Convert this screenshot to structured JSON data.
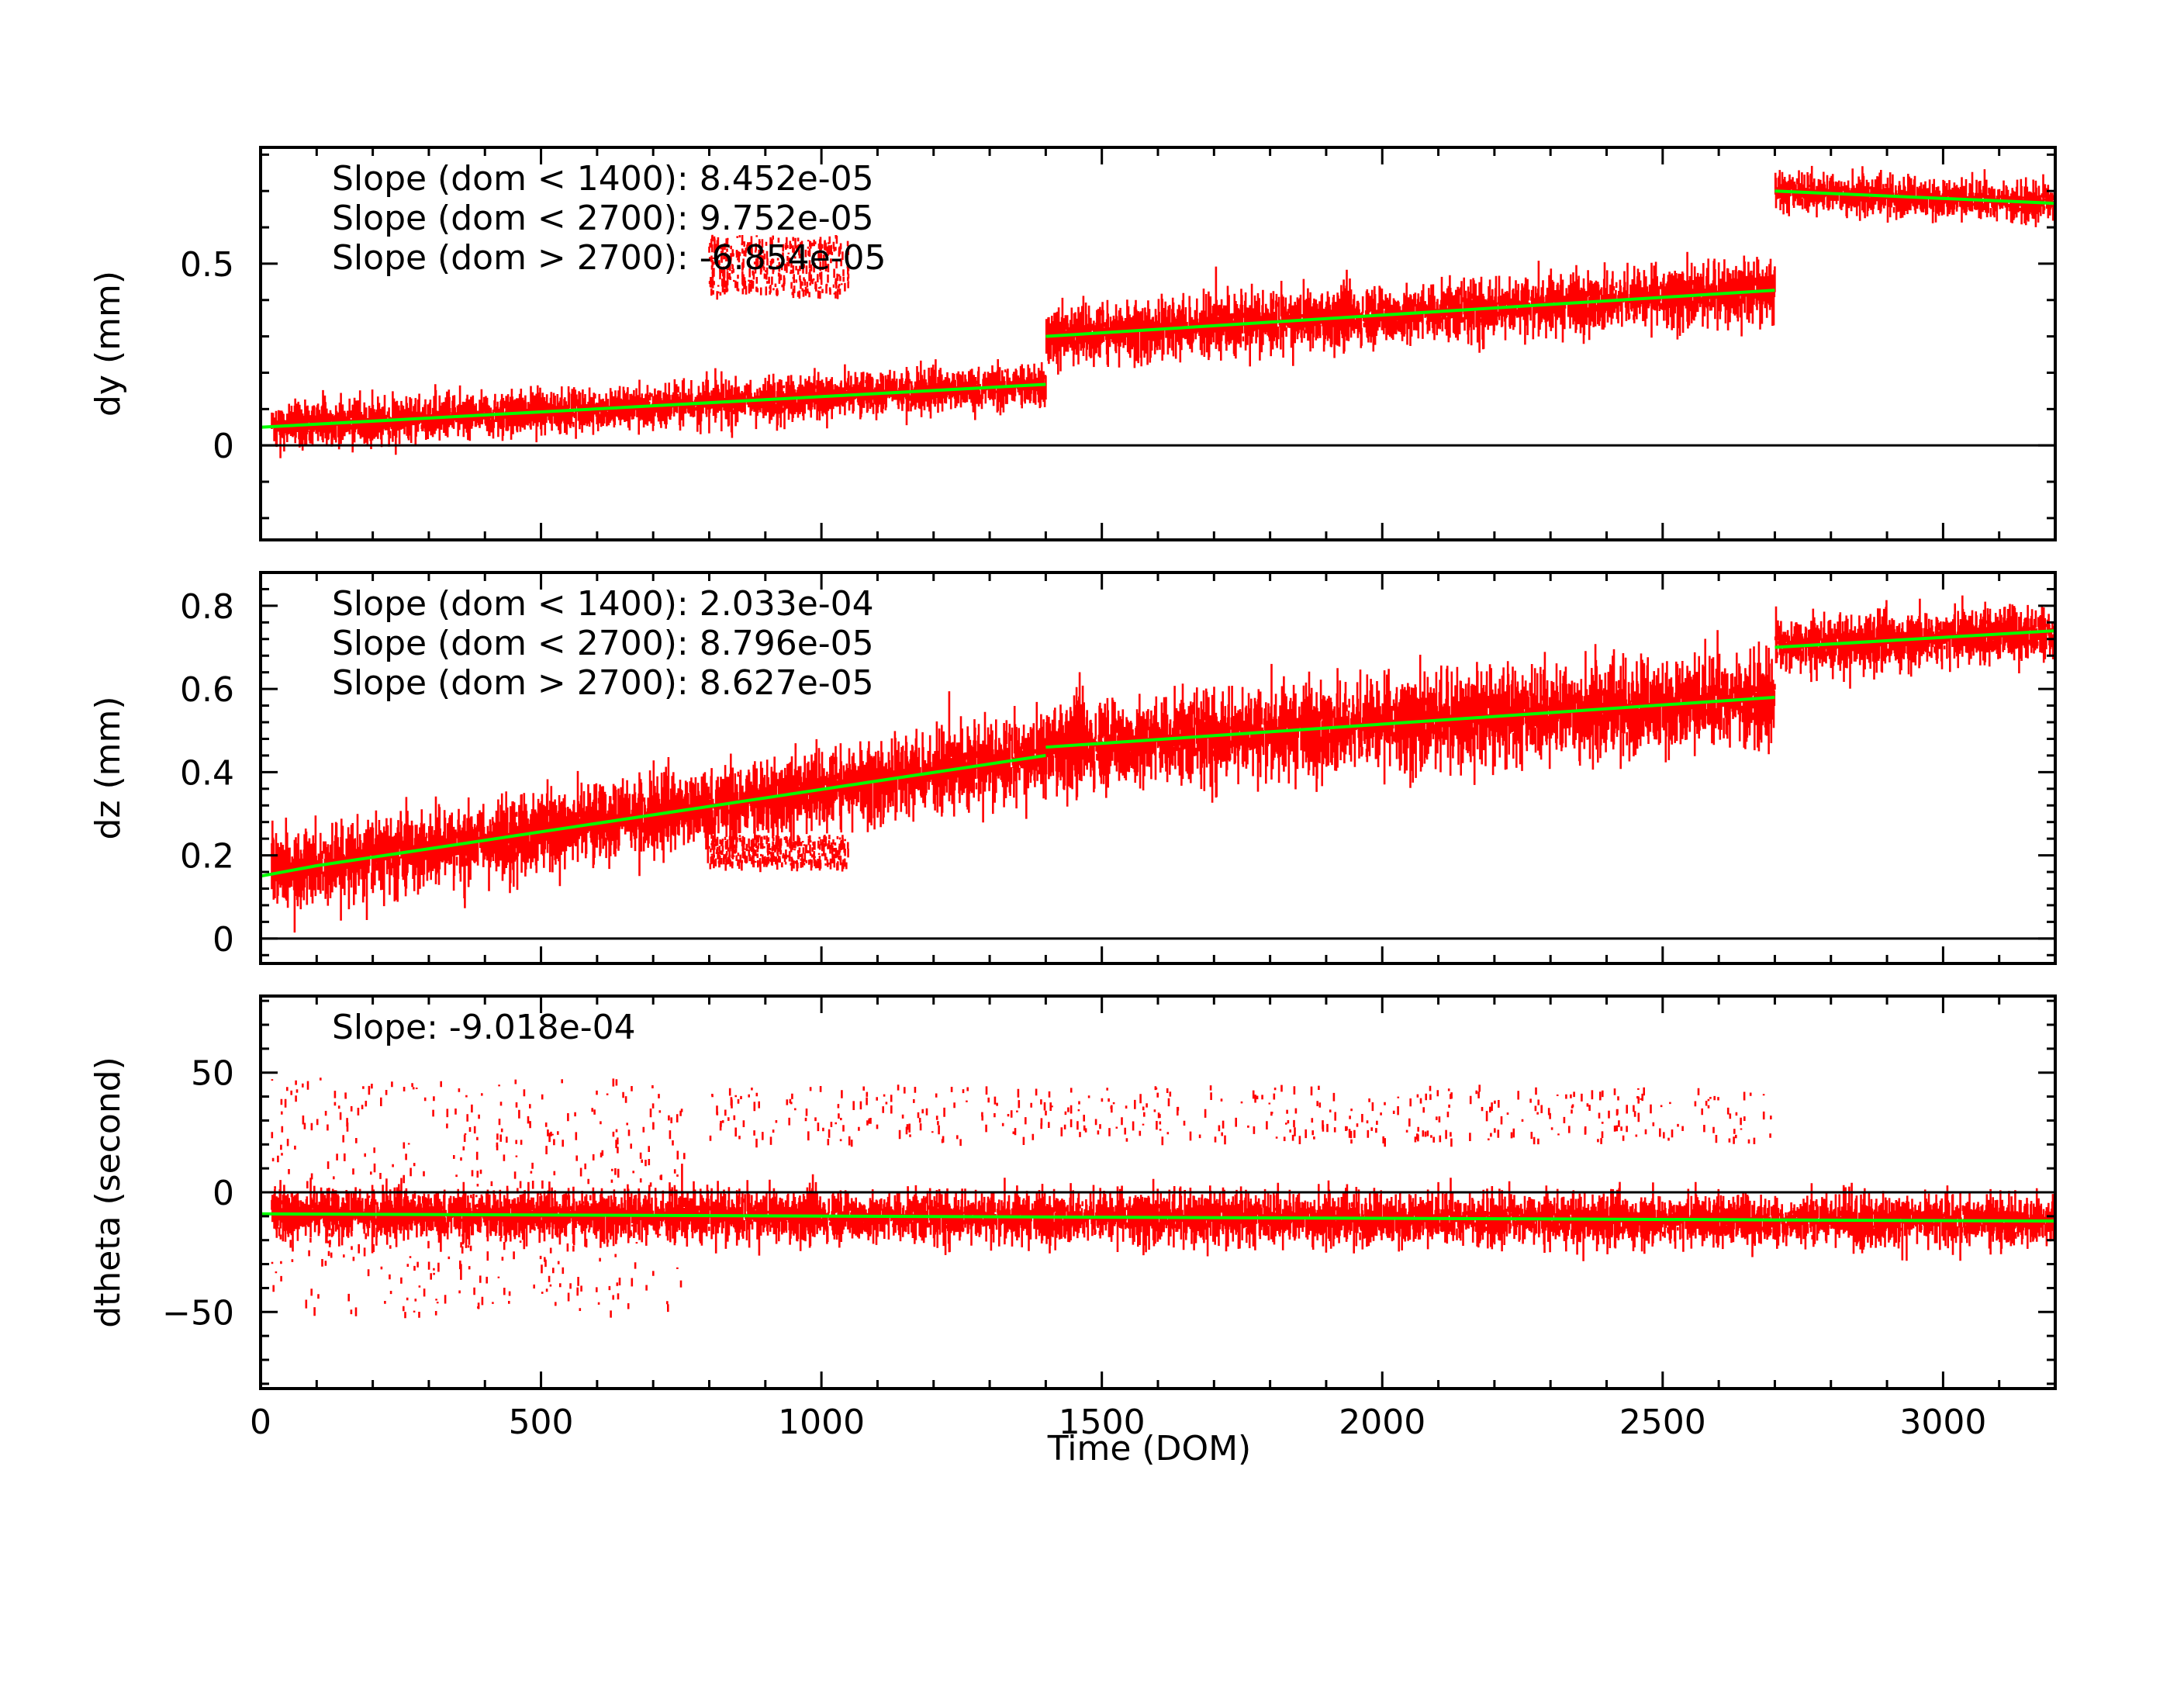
{
  "colors": {
    "data": "#ff0000",
    "fit": "#00ff00",
    "frame": "#000000",
    "background": "#ffffff"
  },
  "chart_data": {
    "type": "scatter",
    "xlabel": "Time (DOM)",
    "xlim": [
      0,
      3200
    ],
    "xticks": [
      0,
      500,
      1000,
      1500,
      2000,
      2500,
      3000
    ],
    "xtick_labels": [
      "0",
      "500",
      "1000",
      "1500",
      "2000",
      "2500",
      "3000"
    ],
    "panels": [
      {
        "id": "dy",
        "ylabel": "dy (mm)",
        "ylim": [
          -0.26,
          0.82
        ],
        "yticks": [
          0,
          0.5
        ],
        "ytick_labels": [
          "0",
          "0.5"
        ],
        "zero_line": true,
        "annotations": [
          "Slope (dom < 1400): 8.452e-05",
          "Slope (dom < 2700): 9.752e-05",
          "Slope (dom > 2700): -6.854e-05"
        ],
        "fit_segments": [
          {
            "x": [
              0,
              1400
            ],
            "y": [
              0.05,
              0.168
            ]
          },
          {
            "x": [
              1400,
              2700
            ],
            "y": [
              0.3,
              0.427
            ]
          },
          {
            "x": [
              2700,
              3200
            ],
            "y": [
              0.7,
              0.666
            ]
          }
        ],
        "noise_bands": [
          {
            "x": [
              20,
              1400
            ],
            "spread": 0.045
          },
          {
            "x": [
              1400,
              2700
            ],
            "spread": 0.06
          },
          {
            "x": [
              2700,
              3200
            ],
            "spread": 0.04
          }
        ],
        "clusters": [
          {
            "x": [
              800,
              1050
            ],
            "y": [
              0.42,
              0.58
            ]
          }
        ]
      },
      {
        "id": "dz",
        "ylabel": "dz (mm)",
        "ylim": [
          -0.06,
          0.88
        ],
        "yticks": [
          0,
          0.2,
          0.4,
          0.6,
          0.8
        ],
        "ytick_labels": [
          "0",
          "0.2",
          "0.4",
          "0.6",
          "0.8"
        ],
        "zero_line": true,
        "annotations": [
          "Slope (dom < 1400): 2.033e-04",
          "Slope (dom < 2700): 8.796e-05",
          "Slope (dom > 2700): 8.627e-05"
        ],
        "fit_segments": [
          {
            "x": [
              0,
              100
            ],
            "y": [
              0.15,
              0.175
            ]
          },
          {
            "x": [
              100,
              1400
            ],
            "y": [
              0.175,
              0.44
            ]
          },
          {
            "x": [
              1400,
              2700
            ],
            "y": [
              0.46,
              0.58
            ]
          },
          {
            "x": [
              2700,
              3200
            ],
            "y": [
              0.7,
              0.74
            ]
          }
        ],
        "noise_bands": [
          {
            "x": [
              20,
              1400
            ],
            "spread": 0.07
          },
          {
            "x": [
              1400,
              2700
            ],
            "spread": 0.08
          },
          {
            "x": [
              2700,
              3200
            ],
            "spread": 0.05
          }
        ],
        "clusters": [
          {
            "x": [
              800,
              1050
            ],
            "y": [
              0.18,
              0.25
            ]
          }
        ]
      },
      {
        "id": "dtheta",
        "ylabel": "dtheta (second)",
        "ylim": [
          -82,
          82
        ],
        "yticks": [
          -50,
          0,
          50
        ],
        "ytick_labels": [
          "−50",
          "0",
          "50"
        ],
        "zero_line": true,
        "annotations": [
          "Slope: -9.018e-04"
        ],
        "fit_segments": [
          {
            "x": [
              0,
              3200
            ],
            "y": [
              -9,
              -12
            ]
          }
        ],
        "noise_bands": [
          {
            "x": [
              20,
              3200
            ],
            "spread": 8
          }
        ],
        "clusters": [
          {
            "x": [
              20,
              760
            ],
            "y": [
              -50,
              48
            ]
          },
          {
            "x": [
              800,
              2700
            ],
            "y": [
              22,
              45
            ]
          }
        ]
      }
    ]
  }
}
